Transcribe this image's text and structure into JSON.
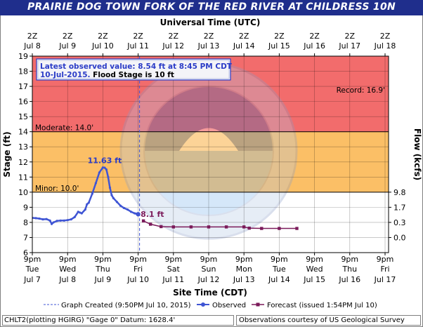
{
  "title": "PRAIRIE DOG TOWN FORK OF THE RED RIVER AT CHILDRESS 10N",
  "top_axis_title": "Universal Time (UTC)",
  "bottom_axis_title": "Site Time (CDT)",
  "left_axis_title": "Stage (ft)",
  "right_axis_title": "Flow (kcfs)",
  "info_box": {
    "line1": "Latest observed value: 8.54 ft at 8:45 PM CDT",
    "line2_date": "10-Jul-2015.",
    "line2_flood": " Flood Stage is 10 ft"
  },
  "legend": {
    "graph_created": "Graph Created (9:50PM Jul 10, 2015)",
    "observed": "Observed",
    "forecast": "Forecast (issued 1:54PM Jul 10)"
  },
  "footer": {
    "left": "CHLT2(plotting HGIRG) \"Gage 0\" Datum: 1628.4'",
    "right": "Observations courtesy of US Geological Survey"
  },
  "colors": {
    "title_bg": "#1f2e8c",
    "record_zone": "#f26c6c",
    "moderate_zone": "#fbbf66",
    "observed": "#3f55d4",
    "forecast": "#7b1a5a",
    "info_text": "#2b3cc7"
  },
  "chart_data": {
    "type": "line",
    "yaxis_left": {
      "label": "Stage (ft)",
      "range": [
        6,
        19
      ],
      "ticks": [
        6,
        7,
        8,
        9,
        10,
        11,
        12,
        13,
        14,
        15,
        16,
        17,
        18,
        19
      ]
    },
    "yaxis_right": {
      "label": "Flow (kcfs)",
      "ticks": [
        {
          "stage": 10,
          "label": "9.8"
        },
        {
          "stage": 9,
          "label": "1.7"
        },
        {
          "stage": 8,
          "label": "0.3"
        },
        {
          "stage": 7,
          "label": "0.0"
        }
      ]
    },
    "xaxis_bottom": {
      "label": "Site Time (CDT)",
      "tick_time": [
        "9pm",
        "9pm",
        "9pm",
        "9pm",
        "9pm",
        "9pm",
        "9pm",
        "9pm",
        "9pm",
        "9pm",
        "9pm"
      ],
      "tick_day": [
        "Tue",
        "Wed",
        "Thu",
        "Fri",
        "Sat",
        "Sun",
        "Mon",
        "Tue",
        "Wed",
        "Thu",
        "Fri"
      ],
      "tick_date": [
        "Jul 7",
        "Jul 8",
        "Jul 9",
        "Jul 10",
        "Jul 11",
        "Jul 12",
        "Jul 13",
        "Jul 14",
        "Jul 15",
        "Jul 16",
        "Jul 17"
      ]
    },
    "xaxis_top": {
      "label": "Universal Time (UTC)",
      "tick_time": [
        "2Z",
        "2Z",
        "2Z",
        "2Z",
        "2Z",
        "2Z",
        "2Z",
        "2Z",
        "2Z",
        "2Z",
        "2Z"
      ],
      "tick_date": [
        "Jul 8",
        "Jul 9",
        "Jul 10",
        "Jul 11",
        "Jul 12",
        "Jul 13",
        "Jul 14",
        "Jul 15",
        "Jul 16",
        "Jul 17",
        "Jul 18"
      ]
    },
    "thresholds": [
      {
        "name": "Record",
        "value": 16.9,
        "label": "Record: 16.9'"
      },
      {
        "name": "Moderate",
        "value": 14.0,
        "label": "Moderate: 14.0'"
      },
      {
        "name": "Minor",
        "value": 10.0,
        "label": "Minor: 10.0'"
      }
    ],
    "graph_created_day": 3.04,
    "observed": {
      "name": "Observed",
      "x_days_since_jul7_9pm": [
        0.0,
        0.1,
        0.2,
        0.3,
        0.4,
        0.5,
        0.55,
        0.6,
        0.7,
        0.8,
        0.9,
        1.0,
        1.1,
        1.2,
        1.3,
        1.35,
        1.4,
        1.5,
        1.55,
        1.6,
        1.7,
        1.8,
        1.9,
        2.0,
        2.05,
        2.1,
        2.15,
        2.2,
        2.25,
        2.3,
        2.4,
        2.5,
        2.6,
        2.7,
        2.8,
        2.9,
        2.95,
        3.0
      ],
      "y": [
        8.3,
        8.28,
        8.25,
        8.2,
        8.22,
        8.12,
        7.9,
        8.0,
        8.1,
        8.12,
        8.12,
        8.15,
        8.2,
        8.35,
        8.7,
        8.65,
        8.6,
        8.85,
        9.2,
        9.3,
        9.9,
        10.6,
        11.3,
        11.63,
        11.62,
        11.5,
        11.0,
        10.3,
        9.8,
        9.6,
        9.35,
        9.1,
        8.95,
        8.85,
        8.7,
        8.6,
        8.57,
        8.54
      ]
    },
    "forecast": {
      "name": "Forecast (issued 1:54PM Jul 10)",
      "x_days_since_jul7_9pm": [
        3.15,
        3.35,
        3.65,
        4.0,
        4.5,
        5.0,
        5.5,
        6.0,
        6.15,
        6.5,
        7.0,
        7.5
      ],
      "y": [
        8.1,
        7.88,
        7.72,
        7.7,
        7.7,
        7.7,
        7.7,
        7.7,
        7.62,
        7.6,
        7.6,
        7.6
      ]
    },
    "annotations": [
      {
        "text": "11.63 ft",
        "x_day": 2.05,
        "y": 11.63
      },
      {
        "text": "8.1 ft",
        "x_day": 3.15,
        "y": 8.1
      }
    ]
  }
}
